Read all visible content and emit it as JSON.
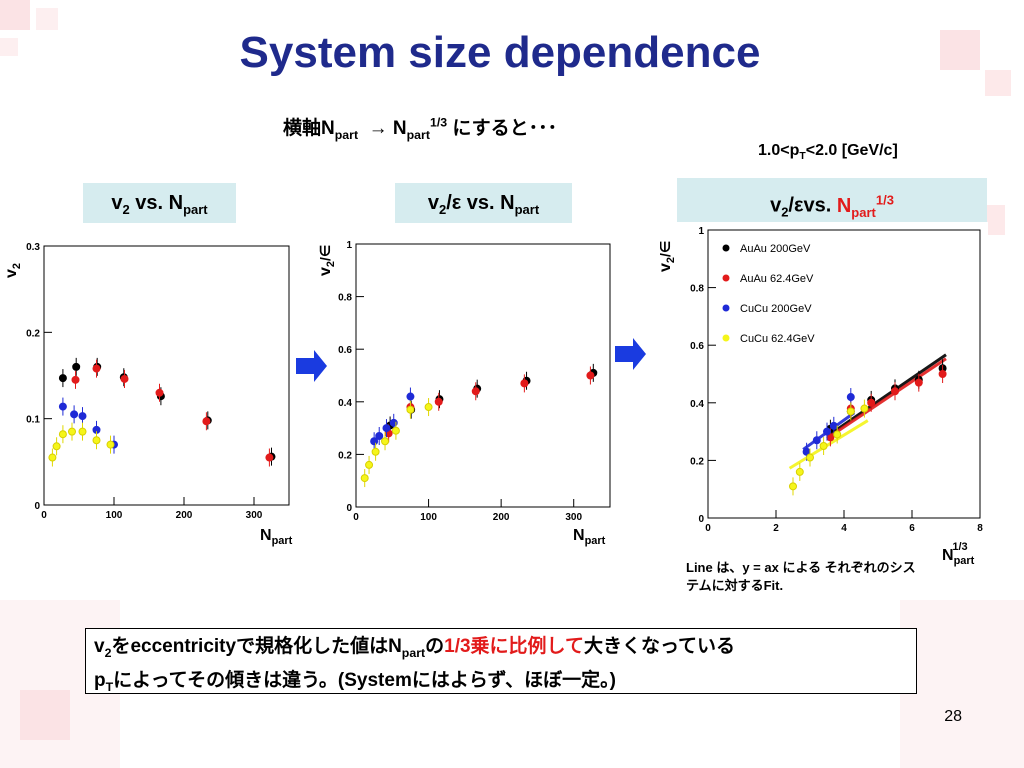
{
  "slide": {
    "title": "System size dependence",
    "subtitle_pre": "横軸N",
    "subtitle_sub1": "part",
    "subtitle_arrow": "→ N",
    "subtitle_sub2": "part",
    "subtitle_sup": "1/3",
    "subtitle_post": " にすると･･･",
    "pt_range_pre": "1.0<p",
    "pt_range_sub": "T",
    "pt_range_post": "<2.0 [GeV/c]",
    "page_number": "28"
  },
  "labels": {
    "panel1": {
      "a": "v",
      "a_sub": "2",
      "b": " vs. N",
      "b_sub": "part"
    },
    "panel2": {
      "a": "v",
      "a_sub": "2",
      "b": "/ε vs. N",
      "b_sub": "part"
    },
    "panel3": {
      "a": "v",
      "a_sub": "2",
      "b": "/εvs. ",
      "c": "N",
      "c_sub": "part",
      "c_sup": "1/3"
    }
  },
  "line_note": "Line は、y = ax による それぞれのシステムに対するFit.",
  "conclusion": {
    "l1_a": "v",
    "l1_a_sub": "2",
    "l1_b": "をeccentricityで規格化した値はN",
    "l1_b_sub": "part",
    "l1_c": "の",
    "l1_red": "1/3乗に比例して",
    "l1_d": "大きくなっている",
    "l2_a": "p",
    "l2_a_sub": "T",
    "l2_b": "によってその傾きは違う。(Systemにはよらず、ほぼ一定。)"
  },
  "colors": {
    "title": "#1f2a8c",
    "accent_red": "#e21b1b",
    "label_bg": "#d6ecef",
    "AuAu200": "#000000",
    "AuAu62": "#e21b1b",
    "CuCu200": "#1f2ad6",
    "CuCu62": "#f5f51a",
    "arrow": "#1a3be0"
  },
  "chart_data": [
    {
      "type": "scatter",
      "xlabel": "N",
      "xlabel_sub": "part",
      "ylabel": "v",
      "ylabel_sub": "2",
      "xlim": [
        0,
        350
      ],
      "ylim": [
        0,
        0.3
      ],
      "xticks": [
        "0",
        "100",
        "200",
        "300"
      ],
      "yticks": [
        "0",
        "0.1",
        "0.2",
        "0.3"
      ],
      "series": [
        {
          "color": "AuAu200",
          "x": [
            27,
            46,
            76,
            114,
            167,
            234,
            325
          ],
          "y": [
            0.147,
            0.16,
            0.16,
            0.148,
            0.126,
            0.098,
            0.056
          ]
        },
        {
          "color": "AuAu62",
          "x": [
            45,
            75,
            115,
            165,
            232,
            322
          ],
          "y": [
            0.145,
            0.158,
            0.146,
            0.13,
            0.097,
            0.055
          ]
        },
        {
          "color": "CuCu200",
          "x": [
            27,
            43,
            55,
            75,
            100
          ],
          "y": [
            0.114,
            0.105,
            0.103,
            0.087,
            0.07
          ]
        },
        {
          "color": "CuCu62",
          "x": [
            12,
            18,
            27,
            40,
            55,
            75,
            95
          ],
          "y": [
            0.055,
            0.068,
            0.082,
            0.085,
            0.085,
            0.075,
            0.07
          ]
        }
      ]
    },
    {
      "type": "scatter",
      "xlabel": "N",
      "xlabel_sub": "part",
      "ylabel": "v",
      "ylabel_sub": "2",
      "ylabel_post": "/∈",
      "xlim": [
        0,
        350
      ],
      "ylim": [
        0,
        1
      ],
      "xticks": [
        "0",
        "100",
        "200",
        "300"
      ],
      "yticks": [
        "0",
        "0.2",
        "0.4",
        "0.6",
        "0.8",
        "1"
      ],
      "series": [
        {
          "color": "AuAu200",
          "x": [
            47,
            76,
            115,
            167,
            235,
            327
          ],
          "y": [
            0.31,
            0.37,
            0.41,
            0.45,
            0.48,
            0.51
          ]
        },
        {
          "color": "AuAu62",
          "x": [
            45,
            75,
            114,
            165,
            232,
            323
          ],
          "y": [
            0.28,
            0.38,
            0.4,
            0.44,
            0.47,
            0.5
          ]
        },
        {
          "color": "CuCu200",
          "x": [
            25,
            32,
            42,
            52,
            75
          ],
          "y": [
            0.25,
            0.27,
            0.3,
            0.32,
            0.42
          ]
        },
        {
          "color": "CuCu62",
          "x": [
            12,
            18,
            27,
            40,
            55,
            75,
            100
          ],
          "y": [
            0.11,
            0.16,
            0.21,
            0.25,
            0.29,
            0.37,
            0.38
          ]
        }
      ]
    },
    {
      "type": "scatter",
      "xlabel": "N",
      "xlabel_sub": "part",
      "xlabel_sup": "1/3",
      "ylabel": "v",
      "ylabel_sub": "2",
      "ylabel_post": "/∈",
      "xlim": [
        0,
        8
      ],
      "ylim": [
        0,
        1
      ],
      "xticks": [
        "0",
        "2",
        "4",
        "6",
        "8"
      ],
      "yticks": [
        "0",
        "0.2",
        "0.4",
        "0.6",
        "0.8",
        "1"
      ],
      "legend": [
        "AuAu 200GeV",
        "AuAu 62.4GeV",
        "CuCu 200GeV",
        "CuCu 62.4GeV"
      ],
      "legend_position": "top-left",
      "series": [
        {
          "name": "AuAu 200GeV",
          "color": "AuAu200",
          "x": [
            3.6,
            4.2,
            4.8,
            5.5,
            6.2,
            6.9
          ],
          "y": [
            0.31,
            0.37,
            0.41,
            0.45,
            0.48,
            0.52
          ],
          "fit_slope": 0.081
        },
        {
          "name": "AuAu 62.4GeV",
          "color": "AuAu62",
          "x": [
            3.6,
            4.2,
            4.8,
            5.5,
            6.2,
            6.9
          ],
          "y": [
            0.28,
            0.38,
            0.4,
            0.44,
            0.47,
            0.5
          ],
          "fit_slope": 0.079
        },
        {
          "name": "CuCu 200GeV",
          "color": "CuCu200",
          "x": [
            2.9,
            3.2,
            3.5,
            3.7,
            4.2
          ],
          "y": [
            0.23,
            0.27,
            0.3,
            0.32,
            0.42
          ],
          "fit_slope": 0.085
        },
        {
          "name": "CuCu 62.4GeV",
          "color": "CuCu62",
          "x": [
            2.5,
            2.7,
            3.0,
            3.4,
            3.8,
            4.2,
            4.6
          ],
          "y": [
            0.11,
            0.16,
            0.21,
            0.25,
            0.29,
            0.37,
            0.38
          ],
          "fit_slope": 0.072
        }
      ]
    }
  ]
}
